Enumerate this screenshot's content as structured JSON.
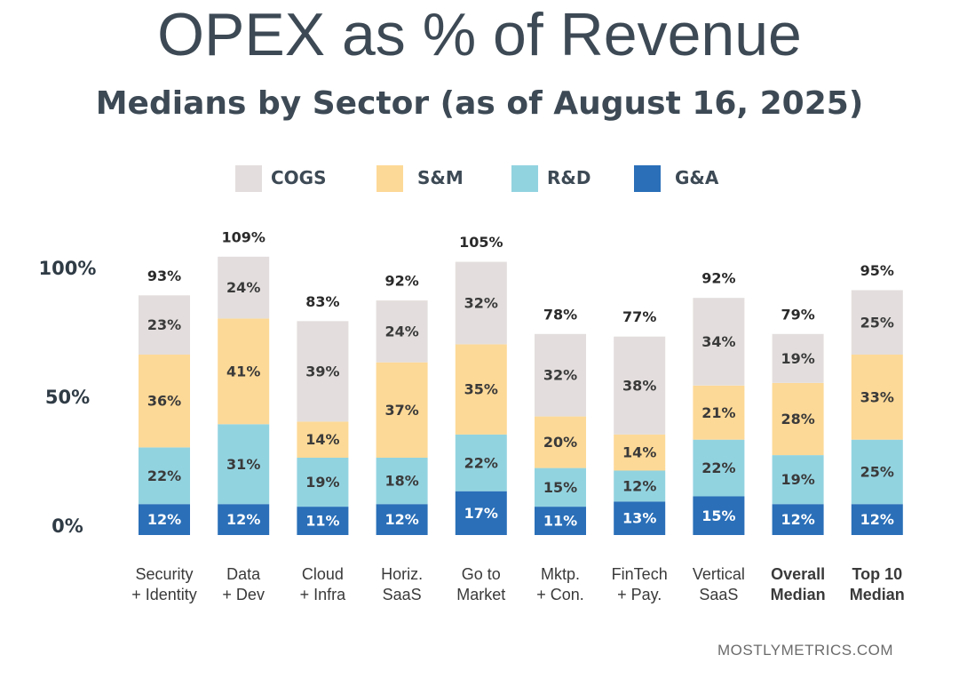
{
  "title": "OPEX as % of Revenue",
  "subtitle": "Medians by Sector (as of August 16, 2025)",
  "source": "MOSTLYMETRICS.COM",
  "legend": [
    {
      "name": "COGS",
      "color": "#e3dedd"
    },
    {
      "name": "S&M",
      "color": "#fdd997"
    },
    {
      "name": "R&D",
      "color": "#92d3e0"
    },
    {
      "name": "G&A",
      "color": "#2a6fb8"
    }
  ],
  "chart_data": {
    "type": "bar",
    "stacked": true,
    "categories": [
      {
        "line1": "Security",
        "line2": "+ Identity",
        "bold": false
      },
      {
        "line1": "Data",
        "line2": "+ Dev",
        "bold": false
      },
      {
        "line1": "Cloud",
        "line2": "+ Infra",
        "bold": false
      },
      {
        "line1": "Horiz.",
        "line2": "SaaS",
        "bold": false
      },
      {
        "line1": "Go to",
        "line2": "Market",
        "bold": false
      },
      {
        "line1": "Mktp.",
        "line2": "+ Con.",
        "bold": false
      },
      {
        "line1": "FinTech",
        "line2": "+ Pay.",
        "bold": false
      },
      {
        "line1": "Vertical",
        "line2": "SaaS",
        "bold": false
      },
      {
        "line1": "Overall",
        "line2": "Median",
        "bold": true
      },
      {
        "line1": "Top 10",
        "line2": "Median",
        "bold": true
      }
    ],
    "series": [
      {
        "name": "G&A",
        "color": "#2a6fb8",
        "label_color": "#ffffff",
        "values": [
          12,
          12,
          11,
          12,
          17,
          11,
          13,
          15,
          12,
          12
        ]
      },
      {
        "name": "R&D",
        "color": "#92d3e0",
        "label_color": "#3a3a3a",
        "values": [
          22,
          31,
          19,
          18,
          22,
          15,
          12,
          22,
          19,
          25
        ]
      },
      {
        "name": "S&M",
        "color": "#fdd997",
        "label_color": "#3a3a3a",
        "values": [
          36,
          41,
          14,
          37,
          35,
          20,
          14,
          21,
          28,
          33
        ]
      },
      {
        "name": "COGS",
        "color": "#e3dedd",
        "label_color": "#3a3a3a",
        "values": [
          23,
          24,
          39,
          24,
          32,
          32,
          38,
          34,
          19,
          25
        ]
      }
    ],
    "data_labels": [
      [
        "12%",
        "12%",
        "11%",
        "12%",
        "17%",
        "11%",
        "13%",
        "15%",
        "12%",
        "12%"
      ],
      [
        "22%",
        "31%",
        "19%",
        "18%",
        "22%",
        "15%",
        "12%",
        "22%",
        "19%",
        "25%"
      ],
      [
        "36%",
        "41%",
        "14%",
        "37%",
        "35%",
        "20%",
        "14%",
        "21%",
        "28%",
        "33%"
      ],
      [
        "23%",
        "24%",
        "39%",
        "24%",
        "32%",
        "32%",
        "38%",
        "34%",
        "19%",
        "25%"
      ]
    ],
    "totals": [
      "93%",
      "109%",
      "83%",
      "92%",
      "105%",
      "78%",
      "77%",
      "92%",
      "79%",
      "95%"
    ],
    "yticks": [
      {
        "value": 0,
        "label": "0%"
      },
      {
        "value": 50,
        "label": "50%"
      },
      {
        "value": 100,
        "label": "100%"
      }
    ],
    "ylim": [
      0,
      110
    ],
    "grid": false,
    "legend_position": "top"
  }
}
